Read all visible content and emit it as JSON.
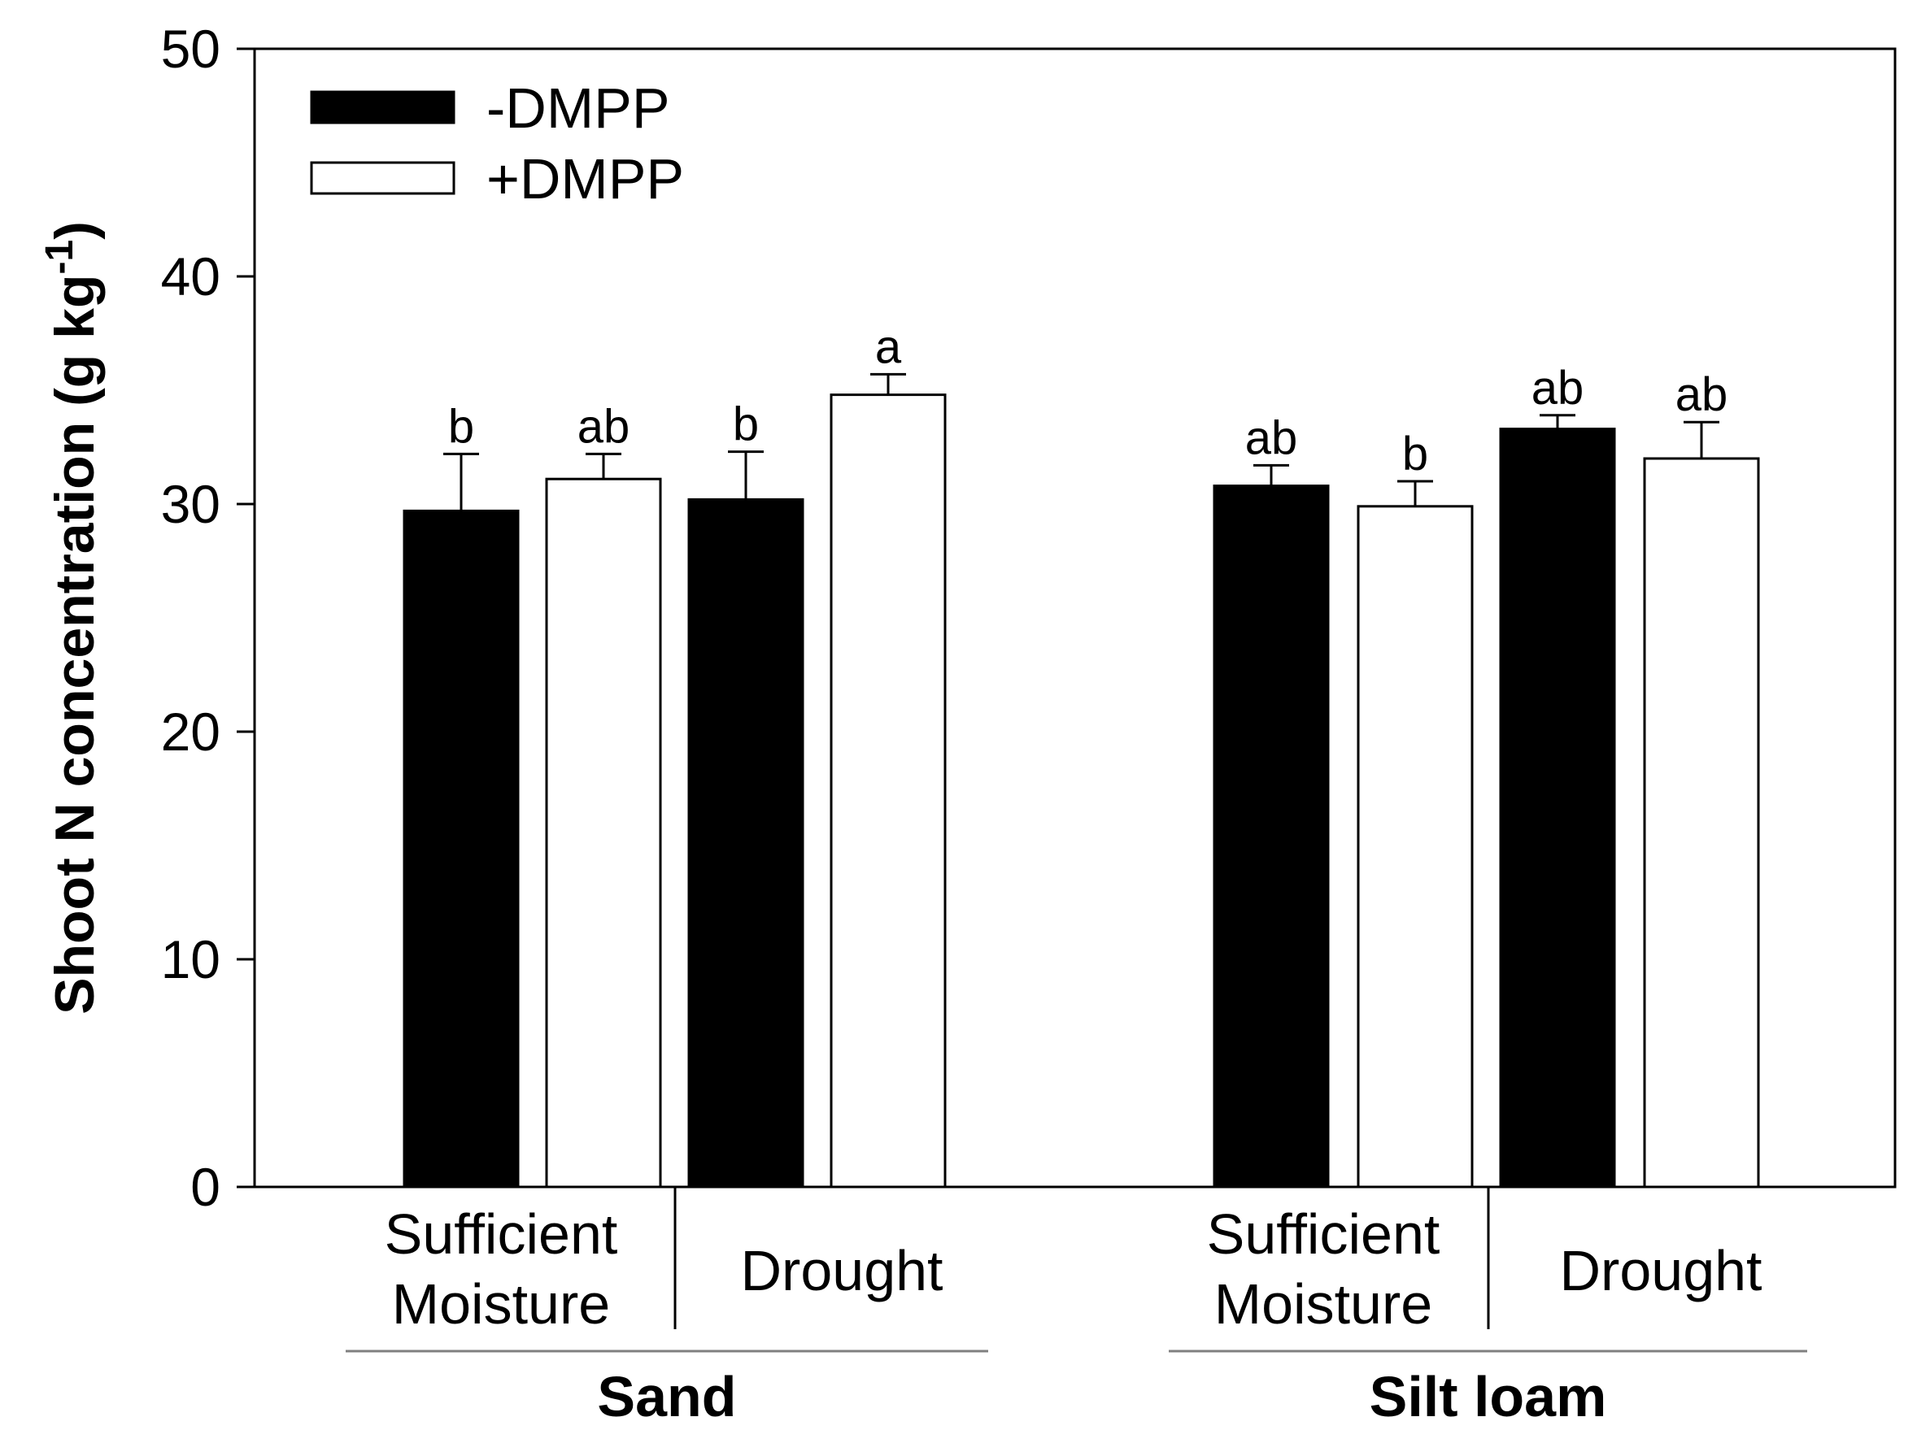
{
  "chart_data": {
    "type": "bar",
    "ylabel": "Shoot N concentration (g kg",
    "ylabel_superscript": "-1",
    "ylabel_close": ")",
    "ylim": [
      0,
      50
    ],
    "yticks": [
      0,
      10,
      20,
      30,
      40,
      50
    ],
    "legend_position": "top-left",
    "colors": {
      "minus": "#000000",
      "plus": "#ffffff",
      "separator": "#808080"
    },
    "series": [
      {
        "name": "-DMPP",
        "fill": "#000000"
      },
      {
        "name": "+DMPP",
        "fill": "#ffffff"
      }
    ],
    "groups": [
      {
        "soil": "Sand",
        "conditions": [
          {
            "label_lines": [
              "Sufficient",
              "Moisture"
            ],
            "bars": [
              {
                "series": "-DMPP",
                "value": 29.7,
                "error": 2.5,
                "sig": "b"
              },
              {
                "series": "+DMPP",
                "value": 31.1,
                "error": 1.1,
                "sig": "ab"
              }
            ]
          },
          {
            "label_lines": [
              "Drought"
            ],
            "bars": [
              {
                "series": "-DMPP",
                "value": 30.2,
                "error": 2.1,
                "sig": "b"
              },
              {
                "series": "+DMPP",
                "value": 34.8,
                "error": 0.9,
                "sig": "a"
              }
            ]
          }
        ]
      },
      {
        "soil": "Silt loam",
        "conditions": [
          {
            "label_lines": [
              "Sufficient",
              "Moisture"
            ],
            "bars": [
              {
                "series": "-DMPP",
                "value": 30.8,
                "error": 0.9,
                "sig": "ab"
              },
              {
                "series": "+DMPP",
                "value": 29.9,
                "error": 1.1,
                "sig": "b"
              }
            ]
          },
          {
            "label_lines": [
              "Drought"
            ],
            "bars": [
              {
                "series": "-DMPP",
                "value": 33.3,
                "error": 0.6,
                "sig": "ab"
              },
              {
                "series": "+DMPP",
                "value": 32.0,
                "error": 1.6,
                "sig": "ab"
              }
            ]
          }
        ]
      }
    ]
  }
}
